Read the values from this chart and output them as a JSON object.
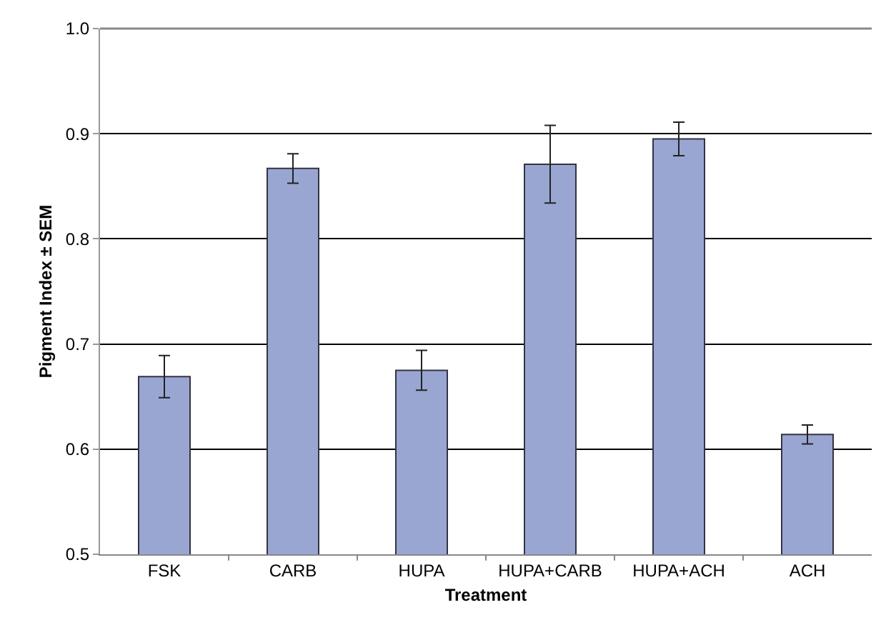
{
  "chart_data": {
    "type": "bar",
    "xlabel": "Treatment",
    "ylabel": "Pigment Index ± SEM",
    "categories": [
      "FSK",
      "CARB",
      "HUPA",
      "HUPA+CARB",
      "HUPA+ACH",
      "ACH"
    ],
    "values": [
      0.669,
      0.867,
      0.675,
      0.871,
      0.895,
      0.614
    ],
    "errors": [
      0.02,
      0.014,
      0.019,
      0.037,
      0.016,
      0.009
    ],
    "color": "#9aa6d2",
    "ylim": [
      0.5,
      1.0
    ],
    "yticks": [
      {
        "value": 0.5,
        "label": "0.5"
      },
      {
        "value": 0.6,
        "label": "0.6"
      },
      {
        "value": 0.7,
        "label": "0.7"
      },
      {
        "value": 0.8,
        "label": "0.8"
      },
      {
        "value": 0.9,
        "label": "0.9"
      },
      {
        "value": 1.0,
        "label": "1.0"
      }
    ],
    "grid": "y",
    "legend": false
  }
}
